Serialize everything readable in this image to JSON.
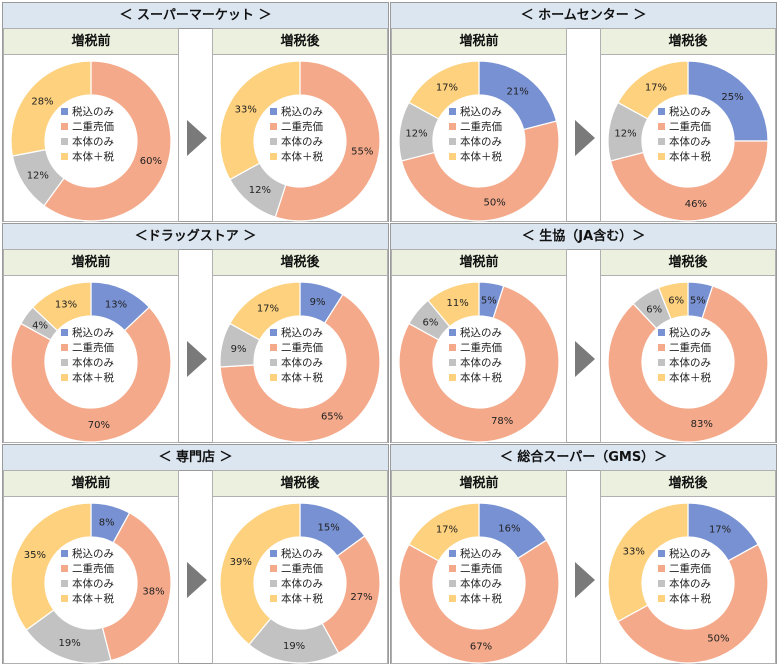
{
  "colors": {
    "zei_komi": "#7891d2",
    "niju": "#f4a98a",
    "hontai": "#c2c2c2",
    "hontai_zei": "#fdd17d"
  },
  "chart_data": [
    {
      "type": "pie",
      "title": "＜ スーパーマーケット ＞",
      "before": {
        "label": "増税前",
        "categories": [
          "税込のみ",
          "二重売価",
          "本体のみ",
          "本体＋税"
        ],
        "values": [
          0,
          60,
          12,
          28
        ],
        "data_labels": [
          "",
          "60%",
          "12%",
          "28%"
        ]
      },
      "after": {
        "label": "増税後",
        "categories": [
          "税込のみ",
          "二重売価",
          "本体のみ",
          "本体＋税"
        ],
        "values": [
          0,
          55,
          12,
          33
        ],
        "data_labels": [
          "",
          "55%",
          "12%",
          "33%"
        ]
      }
    },
    {
      "type": "pie",
      "title": "＜ ホームセンター ＞",
      "before": {
        "label": "増税前",
        "categories": [
          "税込のみ",
          "二重売価",
          "本体のみ",
          "本体＋税"
        ],
        "values": [
          21,
          50,
          12,
          17
        ],
        "data_labels": [
          "21%",
          "50%",
          "12%",
          "17%"
        ]
      },
      "after": {
        "label": "増税後",
        "categories": [
          "税込のみ",
          "二重売価",
          "本体のみ",
          "本体＋税"
        ],
        "values": [
          25,
          46,
          12,
          17
        ],
        "data_labels": [
          "25%",
          "46%",
          "12%",
          "17%"
        ]
      }
    },
    {
      "type": "pie",
      "title": "＜ドラッグストア ＞",
      "before": {
        "label": "増税前",
        "categories": [
          "税込のみ",
          "二重売価",
          "本体のみ",
          "本体＋税"
        ],
        "values": [
          13,
          70,
          4,
          13
        ],
        "data_labels": [
          "13%",
          "70%",
          "4%",
          "13%"
        ]
      },
      "after": {
        "label": "増税後",
        "categories": [
          "税込のみ",
          "二重売価",
          "本体のみ",
          "本体＋税"
        ],
        "values": [
          9,
          65,
          9,
          17
        ],
        "data_labels": [
          "9%",
          "65%",
          "9%",
          "17%"
        ]
      }
    },
    {
      "type": "pie",
      "title": "＜  生協（JA含む）＞",
      "before": {
        "label": "増税前",
        "categories": [
          "税込のみ",
          "二重売価",
          "本体のみ",
          "本体＋税"
        ],
        "values": [
          5,
          78,
          6,
          11
        ],
        "data_labels": [
          "5%",
          "78%",
          "6%",
          "11%"
        ]
      },
      "after": {
        "label": "増税後",
        "categories": [
          "税込のみ",
          "二重売価",
          "本体のみ",
          "本体＋税"
        ],
        "values": [
          5,
          83,
          6,
          6
        ],
        "data_labels": [
          "5%",
          "83%",
          "6%",
          "6%"
        ]
      }
    },
    {
      "type": "pie",
      "title": "＜ 専門店 ＞",
      "before": {
        "label": "増税前",
        "categories": [
          "税込のみ",
          "二重売価",
          "本体のみ",
          "本体＋税"
        ],
        "values": [
          8,
          38,
          19,
          35
        ],
        "data_labels": [
          "8%",
          "38%",
          "19%",
          "35%"
        ]
      },
      "after": {
        "label": "増税後",
        "categories": [
          "税込のみ",
          "二重売価",
          "本体のみ",
          "本体＋税"
        ],
        "values": [
          15,
          27,
          19,
          39
        ],
        "data_labels": [
          "15%",
          "27%",
          "19%",
          "39%"
        ]
      }
    },
    {
      "type": "pie",
      "title": "＜ 総合スーパー（GMS）＞",
      "before": {
        "label": "増税前",
        "categories": [
          "税込のみ",
          "二重売価",
          "本体のみ",
          "本体＋税"
        ],
        "values": [
          16,
          67,
          0,
          17
        ],
        "data_labels": [
          "16%",
          "67%",
          "",
          "17%"
        ]
      },
      "after": {
        "label": "増税後",
        "categories": [
          "税込のみ",
          "二重売価",
          "本体のみ",
          "本体＋税"
        ],
        "values": [
          17,
          50,
          0,
          33
        ],
        "data_labels": [
          "17%",
          "50%",
          "",
          "33%"
        ]
      }
    }
  ]
}
